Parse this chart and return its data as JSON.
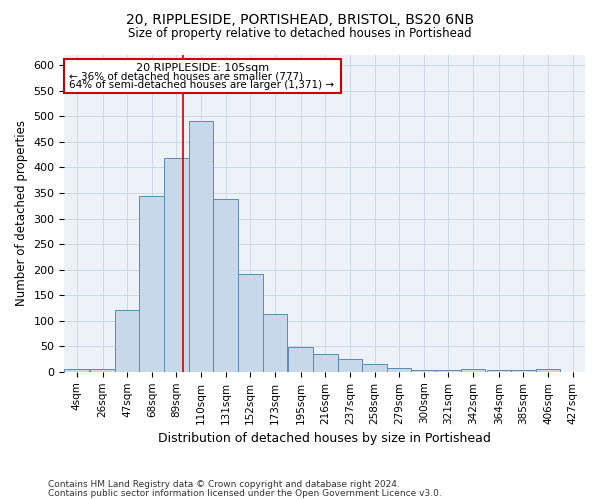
{
  "title": "20, RIPPLESIDE, PORTISHEAD, BRISTOL, BS20 6NB",
  "subtitle": "Size of property relative to detached houses in Portishead",
  "xlabel": "Distribution of detached houses by size in Portishead",
  "ylabel": "Number of detached properties",
  "bar_heights": [
    5,
    5,
    120,
    345,
    418,
    490,
    338,
    192,
    113,
    49,
    35,
    26,
    15,
    8,
    3,
    3,
    5,
    3,
    3,
    5
  ],
  "bin_starts": [
    4,
    26,
    47,
    68,
    89,
    110,
    131,
    152,
    173,
    195,
    216,
    237,
    258,
    279,
    300,
    321,
    342,
    364,
    385,
    406
  ],
  "bin_width": 21,
  "bar_color": "#c8d8eb",
  "bar_edge_color": "#5a8ab5",
  "vline_x": 105,
  "vline_color": "#cc0000",
  "box_color": "#cc0000",
  "marker_label": "20 RIPPLESIDE: 105sqm",
  "annotation_line1": "← 36% of detached houses are smaller (777)",
  "annotation_line2": "64% of semi-detached houses are larger (1,371) →",
  "xlim": [
    4,
    448
  ],
  "ylim": [
    0,
    620
  ],
  "yticks": [
    0,
    50,
    100,
    150,
    200,
    250,
    300,
    350,
    400,
    450,
    500,
    550,
    600
  ],
  "xtick_labels": [
    "4sqm",
    "26sqm",
    "47sqm",
    "68sqm",
    "89sqm",
    "110sqm",
    "131sqm",
    "152sqm",
    "173sqm",
    "195sqm",
    "216sqm",
    "237sqm",
    "258sqm",
    "279sqm",
    "300sqm",
    "321sqm",
    "342sqm",
    "364sqm",
    "385sqm",
    "406sqm",
    "427sqm"
  ],
  "footnote1": "Contains HM Land Registry data © Crown copyright and database right 2024.",
  "footnote2": "Contains public sector information licensed under the Open Government Licence v3.0.",
  "bg_color": "#edf2f8",
  "grid_color": "#c8d4e4"
}
